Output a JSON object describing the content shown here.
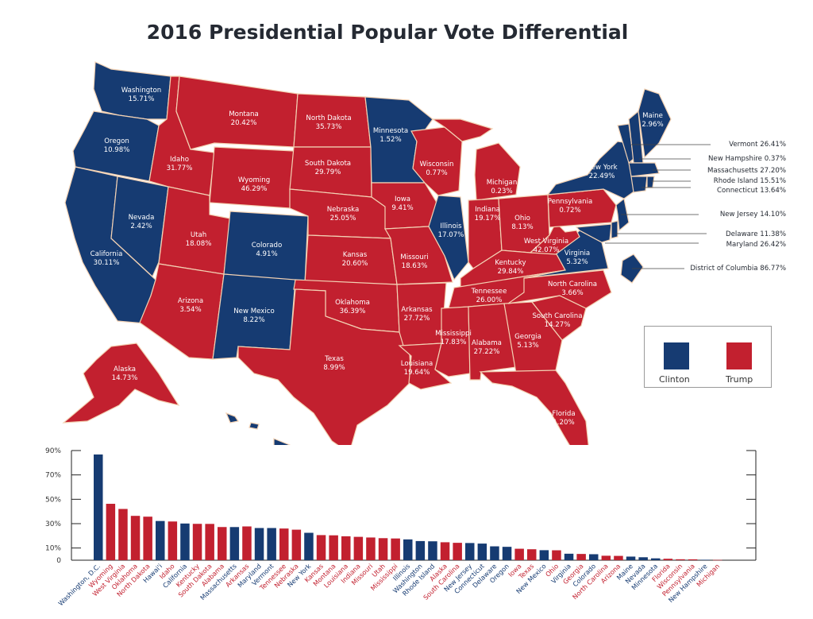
{
  "title": "2016 Presidential Popular Vote Differential",
  "colors": {
    "clinton": "#163b72",
    "trump": "#c2202f",
    "border": "#f3d2b4"
  },
  "legend": {
    "clinton": "Clinton",
    "trump": "Trump"
  },
  "map_labels": [
    {
      "name": "Washington",
      "pct": "15.71%",
      "party": "dem"
    },
    {
      "name": "Oregon",
      "pct": "10.98%",
      "party": "dem"
    },
    {
      "name": "California",
      "pct": "30.11%",
      "party": "dem"
    },
    {
      "name": "Nevada",
      "pct": "2.42%",
      "party": "dem"
    },
    {
      "name": "Idaho",
      "pct": "31.77%",
      "party": "rep"
    },
    {
      "name": "Montana",
      "pct": "20.42%",
      "party": "rep"
    },
    {
      "name": "Wyoming",
      "pct": "46.29%",
      "party": "rep"
    },
    {
      "name": "Utah",
      "pct": "18.08%",
      "party": "rep"
    },
    {
      "name": "Colorado",
      "pct": "4.91%",
      "party": "dem"
    },
    {
      "name": "Arizona",
      "pct": "3.54%",
      "party": "rep"
    },
    {
      "name": "New Mexico",
      "pct": "8.22%",
      "party": "dem"
    },
    {
      "name": "North Dakota",
      "pct": "35.73%",
      "party": "rep"
    },
    {
      "name": "South Dakota",
      "pct": "29.79%",
      "party": "rep"
    },
    {
      "name": "Nebraska",
      "pct": "25.05%",
      "party": "rep"
    },
    {
      "name": "Kansas",
      "pct": "20.60%",
      "party": "rep"
    },
    {
      "name": "Oklahoma",
      "pct": "36.39%",
      "party": "rep"
    },
    {
      "name": "Texas",
      "pct": "8.99%",
      "party": "rep"
    },
    {
      "name": "Minnesota",
      "pct": "1.52%",
      "party": "dem"
    },
    {
      "name": "Iowa",
      "pct": "9.41%",
      "party": "rep"
    },
    {
      "name": "Missouri",
      "pct": "18.63%",
      "party": "rep"
    },
    {
      "name": "Arkansas",
      "pct": "27.72%",
      "party": "rep"
    },
    {
      "name": "Louisiana",
      "pct": "19.64%",
      "party": "rep"
    },
    {
      "name": "Wisconsin",
      "pct": "0.77%",
      "party": "rep"
    },
    {
      "name": "Illinois",
      "pct": "17.07%",
      "party": "dem"
    },
    {
      "name": "Michigan",
      "pct": "0.23%",
      "party": "rep"
    },
    {
      "name": "Indiana",
      "pct": "19.17%",
      "party": "rep"
    },
    {
      "name": "Ohio",
      "pct": "8.13%",
      "party": "rep"
    },
    {
      "name": "Kentucky",
      "pct": "29.84%",
      "party": "rep"
    },
    {
      "name": "Tennessee",
      "pct": "26.00%",
      "party": "rep"
    },
    {
      "name": "Mississippi",
      "pct": "17.83%",
      "party": "rep"
    },
    {
      "name": "Alabama",
      "pct": "27.22%",
      "party": "rep"
    },
    {
      "name": "Georgia",
      "pct": "5.13%",
      "party": "rep"
    },
    {
      "name": "Florida",
      "pct": "1.20%",
      "party": "rep"
    },
    {
      "name": "South Carolina",
      "pct": "14.27%",
      "party": "rep"
    },
    {
      "name": "North Carolina",
      "pct": "3.66%",
      "party": "rep"
    },
    {
      "name": "Virginia",
      "pct": "5.32%",
      "party": "dem"
    },
    {
      "name": "West Virginia",
      "pct": "42.07%",
      "party": "rep"
    },
    {
      "name": "Pennsylvania",
      "pct": "0.72%",
      "party": "rep"
    },
    {
      "name": "New York",
      "pct": "22.49%",
      "party": "dem"
    },
    {
      "name": "Maine",
      "pct": "2.96%",
      "party": "dem"
    },
    {
      "name": "Alaska",
      "pct": "14.73%",
      "party": "rep"
    },
    {
      "name": "Hawaii",
      "pct": "32.18%",
      "party": "dem"
    }
  ],
  "callouts": [
    {
      "text": "Vermont  26.41%"
    },
    {
      "text": "New Hampshire  0.37%"
    },
    {
      "text": "Massachusetts 27.20%"
    },
    {
      "text": "Rhode Island  15.51%"
    },
    {
      "text": "Connecticut  13.64%"
    },
    {
      "text": "New Jersey  14.10%"
    },
    {
      "text": "Delaware  11.38%"
    },
    {
      "text": "Maryland  26.42%"
    },
    {
      "text": "District of Columbia  86.77%"
    }
  ],
  "chart_data": {
    "type": "bar",
    "title": "",
    "xlabel": "",
    "ylabel": "",
    "ylim": [
      0,
      90
    ],
    "yticks": [
      "90%",
      "70%",
      "50%",
      "30%",
      "10%",
      "0"
    ],
    "ytick_values": [
      90,
      70,
      50,
      30,
      10,
      0
    ],
    "categories": [
      "Washington, D.C.",
      "Wyoming",
      "West Virginia",
      "Oklahoma",
      "North Dakota",
      "Hawai'i",
      "Idaho",
      "California",
      "Kentucky",
      "South Dakota",
      "Alabama",
      "Massachusetts",
      "Arkansas",
      "Maryland",
      "Vermont",
      "Tennessee",
      "Nebraska",
      "New York",
      "Kansas",
      "Montana",
      "Louisiana",
      "Indiana",
      "Missouri",
      "Utah",
      "Mississippi",
      "Illinois",
      "Washington",
      "Rhode Island",
      "Alaska",
      "South Carolina",
      "New Jersey",
      "Connecticut",
      "Delaware",
      "Oregon",
      "Iowa",
      "Texas",
      "New Mexico",
      "Ohio",
      "Virginia",
      "Georgia",
      "Colorado",
      "North Carolina",
      "Arizona",
      "Maine",
      "Nevada",
      "Minnesota",
      "Florida",
      "Wisconsin",
      "Pennsylvania",
      "New Hampshire",
      "Michigan"
    ],
    "values": [
      86.77,
      46.29,
      42.07,
      36.39,
      35.73,
      32.18,
      31.77,
      30.11,
      29.84,
      29.79,
      27.22,
      27.2,
      27.72,
      26.42,
      26.41,
      26.0,
      25.05,
      22.49,
      20.6,
      20.42,
      19.64,
      19.17,
      18.63,
      18.08,
      17.83,
      17.07,
      15.71,
      15.51,
      14.73,
      14.27,
      14.1,
      13.64,
      11.38,
      10.98,
      9.41,
      8.99,
      8.22,
      8.13,
      5.32,
      5.13,
      4.91,
      3.66,
      3.54,
      2.96,
      2.42,
      1.52,
      1.2,
      0.77,
      0.72,
      0.37,
      0.23
    ],
    "winner": [
      "dem",
      "rep",
      "rep",
      "rep",
      "rep",
      "dem",
      "rep",
      "dem",
      "rep",
      "rep",
      "rep",
      "dem",
      "rep",
      "dem",
      "dem",
      "rep",
      "rep",
      "dem",
      "rep",
      "rep",
      "rep",
      "rep",
      "rep",
      "rep",
      "rep",
      "dem",
      "dem",
      "dem",
      "rep",
      "rep",
      "dem",
      "dem",
      "dem",
      "dem",
      "rep",
      "rep",
      "dem",
      "rep",
      "dem",
      "rep",
      "dem",
      "rep",
      "rep",
      "dem",
      "dem",
      "dem",
      "rep",
      "rep",
      "rep",
      "dem",
      "rep"
    ]
  }
}
